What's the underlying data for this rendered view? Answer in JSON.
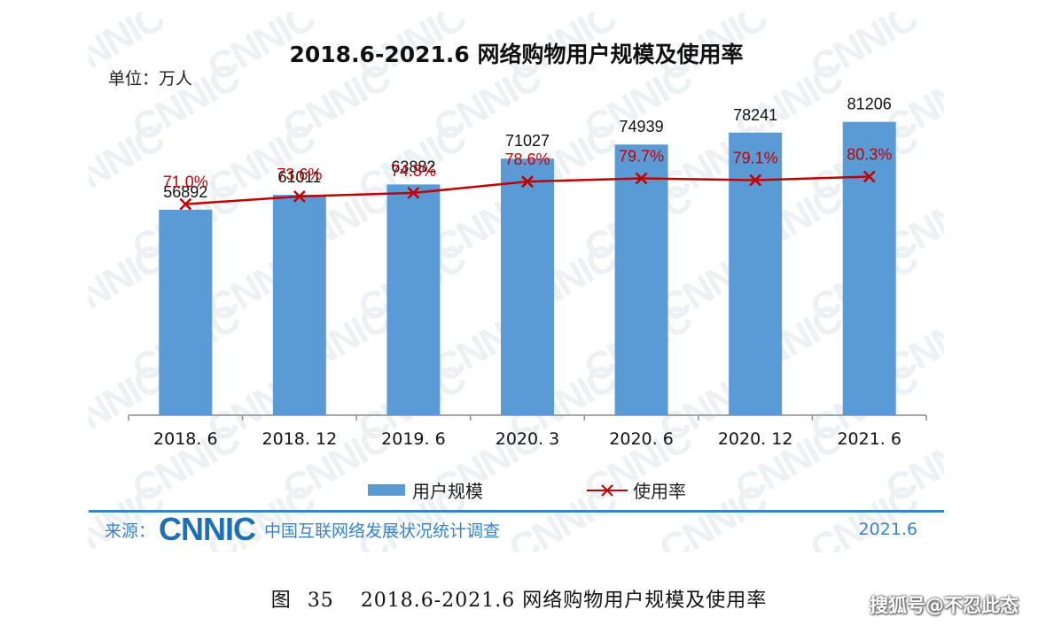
{
  "chart_data": {
    "type": "bar",
    "title": "2018.6-2021.6 网络购物用户规模及使用率",
    "unit_label": "单位：万人",
    "categories": [
      "2018. 6",
      "2018. 12",
      "2019. 6",
      "2020. 3",
      "2020. 6",
      "2020. 12",
      "2021. 6"
    ],
    "series": [
      {
        "name": "用户规模",
        "type": "bar",
        "color": "#5b9bd5",
        "values": [
          56892,
          61011,
          63882,
          71027,
          74939,
          78241,
          81206
        ],
        "labels": [
          "56892",
          "61011",
          "63882",
          "71027",
          "74939",
          "78241",
          "81206"
        ]
      },
      {
        "name": "使用率",
        "type": "line",
        "color": "#c00000",
        "marker": "x",
        "values": [
          71.0,
          73.6,
          74.8,
          78.6,
          79.7,
          79.1,
          80.3
        ],
        "labels": [
          "71.0%",
          "73.6%",
          "74.8%",
          "78.6%",
          "79.7%",
          "79.1%",
          "80.3%"
        ]
      }
    ],
    "grid": false,
    "legend": "bottom"
  },
  "watermark": "CNNIC",
  "source": {
    "prefix": "来源：",
    "logo_text": "CNNIC",
    "text": "中国互联网络发展状况统计调查",
    "date": "2021.6"
  },
  "caption": {
    "label": "图",
    "number": "35",
    "text": "2018.6-2021.6  网络购物用户规模及使用率"
  },
  "credit": "搜狐号@不忍此态",
  "colors": {
    "bar": "#5b9bd5",
    "line": "#c00000",
    "source": "#3a84c5"
  }
}
